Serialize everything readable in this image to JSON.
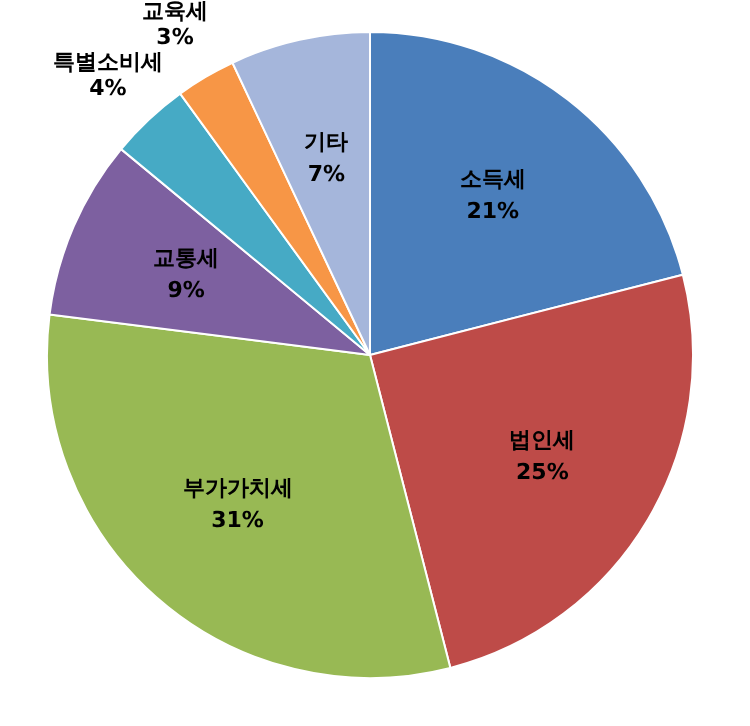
{
  "chart_data": {
    "type": "pie",
    "categories": [
      "소득세",
      "법인세",
      "부가가치세",
      "교통세",
      "특별소비세",
      "교육세",
      "기타"
    ],
    "values": [
      21,
      25,
      31,
      9,
      4,
      3,
      7
    ],
    "value_labels": [
      "21%",
      "25%",
      "31%",
      "9%",
      "4%",
      "3%",
      "7%"
    ],
    "colors": [
      "#4a7ebb",
      "#be4b48",
      "#98b954",
      "#7d60a0",
      "#46aac5",
      "#f79646",
      "#a5b6db"
    ],
    "legend": false
  }
}
